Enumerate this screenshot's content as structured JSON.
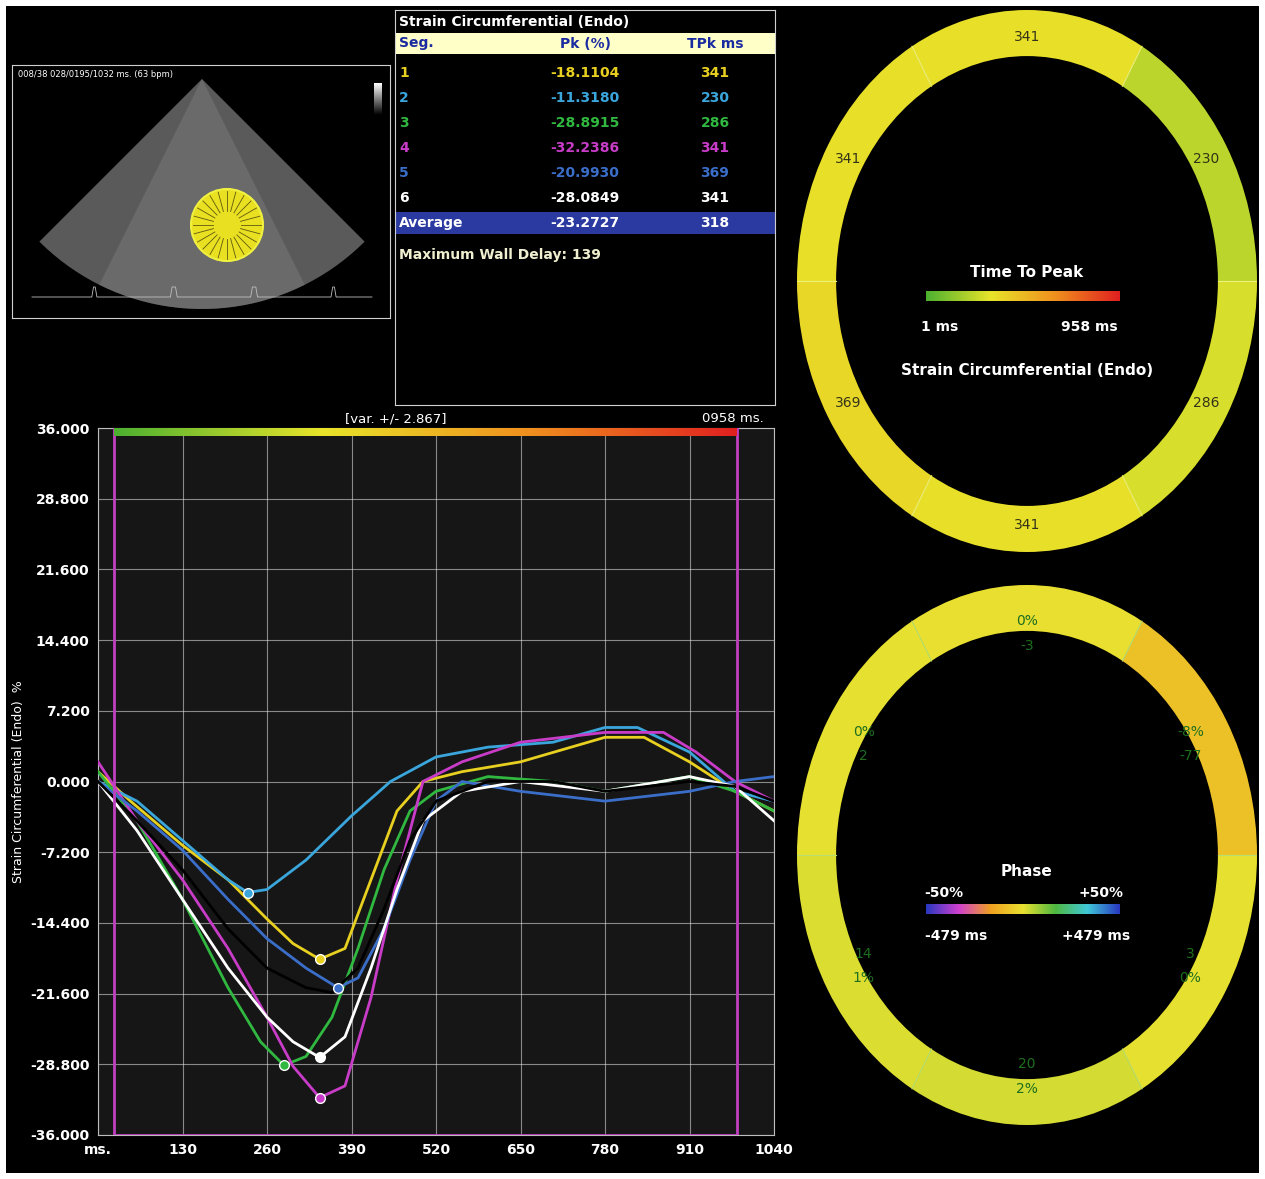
{
  "chart_data": {
    "type": "line",
    "y_label": "Strain Circumferential (Endo)  %",
    "xlim": [
      0,
      1040
    ],
    "ylim": [
      -36,
      36
    ],
    "xticks": [
      {
        "value": 0,
        "label": "ms."
      },
      130,
      260,
      390,
      520,
      650,
      780,
      910,
      1040
    ],
    "yticks": [
      {
        "value": -36,
        "label": "-36.000"
      },
      {
        "value": -28.8,
        "label": "-28.800"
      },
      {
        "value": -21.6,
        "label": "-21.600"
      },
      {
        "value": -14.4,
        "label": "-14.400"
      },
      {
        "value": -7.2,
        "label": "-7.200"
      },
      {
        "value": 0,
        "label": "0.000"
      },
      {
        "value": 7.2,
        "label": "7.200"
      },
      {
        "value": 14.4,
        "label": "14.400"
      },
      {
        "value": 21.6,
        "label": "21.600"
      },
      {
        "value": 28.8,
        "label": "28.800"
      },
      {
        "value": 36,
        "label": "36.000"
      }
    ],
    "grid": true,
    "marker": "o",
    "window": {
      "range": [
        25,
        983
      ],
      "label": "[var. +/- 2.867]",
      "duration_label": "0958 ms."
    },
    "series": [
      {
        "color": "#e8d020",
        "x": [
          0,
          50,
          130,
          200,
          260,
          300,
          341,
          380,
          420,
          460,
          500,
          560,
          650,
          780,
          840,
          910,
          980,
          1040
        ],
        "values": [
          1,
          -2,
          -6.5,
          -10,
          -14,
          -16.5,
          -18.1,
          -17,
          -10,
          -3,
          0,
          1,
          2,
          4.5,
          4.5,
          2,
          -1,
          -3
        ]
      },
      {
        "color": "#3aa6dc",
        "x": [
          0,
          60,
          130,
          200,
          230,
          260,
          320,
          390,
          450,
          520,
          600,
          700,
          780,
          830,
          910,
          980,
          1040
        ],
        "values": [
          0,
          -2,
          -6,
          -10,
          -11.3,
          -11,
          -8,
          -3.5,
          0,
          2.5,
          3.5,
          4,
          5.5,
          5.5,
          3,
          -1,
          -2
        ]
      },
      {
        "color": "#30b840",
        "x": [
          0,
          60,
          130,
          200,
          250,
          286,
          320,
          360,
          400,
          440,
          480,
          520,
          600,
          700,
          780,
          910,
          980,
          1040
        ],
        "values": [
          1,
          -4,
          -12,
          -21,
          -26.5,
          -28.9,
          -28,
          -24,
          -17,
          -9,
          -3,
          -1,
          0.5,
          0,
          -1,
          0.5,
          -1,
          -3
        ]
      },
      {
        "color": "#c83cc8",
        "x": [
          0,
          60,
          130,
          200,
          260,
          300,
          341,
          380,
          420,
          460,
          500,
          560,
          650,
          780,
          870,
          920,
          980,
          1040
        ],
        "values": [
          2,
          -4,
          -10,
          -17,
          -24,
          -29,
          -32.2,
          -31,
          -22,
          -10,
          0,
          2,
          4,
          5,
          5,
          3,
          0,
          -2
        ]
      },
      {
        "color": "#3a6ec8",
        "x": [
          0,
          60,
          130,
          200,
          260,
          320,
          369,
          400,
          440,
          480,
          520,
          560,
          650,
          780,
          910,
          980,
          1040
        ],
        "values": [
          0,
          -3,
          -7,
          -12,
          -16,
          -19,
          -21,
          -20,
          -15,
          -8,
          -2,
          0,
          -1,
          -2,
          -1,
          0,
          0.5
        ]
      },
      {
        "color": "#ffffff",
        "x": [
          0,
          60,
          130,
          200,
          260,
          300,
          341,
          380,
          420,
          460,
          500,
          560,
          650,
          780,
          910,
          980,
          1040
        ],
        "values": [
          0,
          -5,
          -12,
          -19,
          -24,
          -26.5,
          -28.1,
          -26,
          -19,
          -11,
          -4,
          -1,
          0,
          -1,
          0.5,
          -0.5,
          -4
        ]
      }
    ],
    "average_series": {
      "color": "#000000",
      "x": [
        0,
        60,
        130,
        200,
        260,
        320,
        360,
        400,
        440,
        480,
        520,
        600,
        700,
        780,
        910,
        980,
        1040
      ],
      "values": [
        0,
        -4,
        -9,
        -15,
        -19,
        -21,
        -21.5,
        -19,
        -13,
        -6,
        -2,
        0,
        0,
        -1,
        0,
        -0.5,
        -2
      ]
    }
  },
  "echo_image": {
    "label": "008/38 028/0195/1032 ms. (63 bpm)"
  },
  "table": {
    "title": "Strain Circumferential (Endo)",
    "header": [
      "Seg.",
      "Pk (%)",
      "TPk ms"
    ],
    "rows": [
      [
        "1",
        "-18.1104",
        "341"
      ],
      [
        "2",
        "-11.3180",
        "230"
      ],
      [
        "3",
        "-28.8915",
        "286"
      ],
      [
        "4",
        "-32.2386",
        "341"
      ],
      [
        "5",
        "-20.9930",
        "369"
      ],
      [
        "6",
        "-28.0849",
        "341"
      ]
    ],
    "average": [
      "Average",
      "-23.2727",
      "318"
    ],
    "note": "Maximum Wall Delay: 139"
  },
  "time_to_peak_ring": {
    "title": "Time To Peak",
    "subtitle": "Strain Circumferential (Endo)",
    "range": [
      1,
      958
    ],
    "range_labels": [
      "1 ms",
      "958 ms"
    ],
    "values": [
      341,
      230,
      286,
      341,
      369,
      341
    ]
  },
  "phase_ring": {
    "title": "Phase",
    "range": [
      -479,
      479
    ],
    "range_labels": [
      "-50%",
      "+50%"
    ],
    "range_ms_labels": [
      "-479 ms",
      "+479 ms"
    ],
    "segments": [
      {
        "ms": -3,
        "percent": "0%"
      },
      {
        "ms": -77,
        "percent": "-8%"
      },
      {
        "ms": 3,
        "percent": "0%"
      },
      {
        "ms": 20,
        "percent": "2%"
      },
      {
        "ms": 14,
        "percent": "1%"
      },
      {
        "ms": 2,
        "percent": "0%"
      }
    ]
  }
}
